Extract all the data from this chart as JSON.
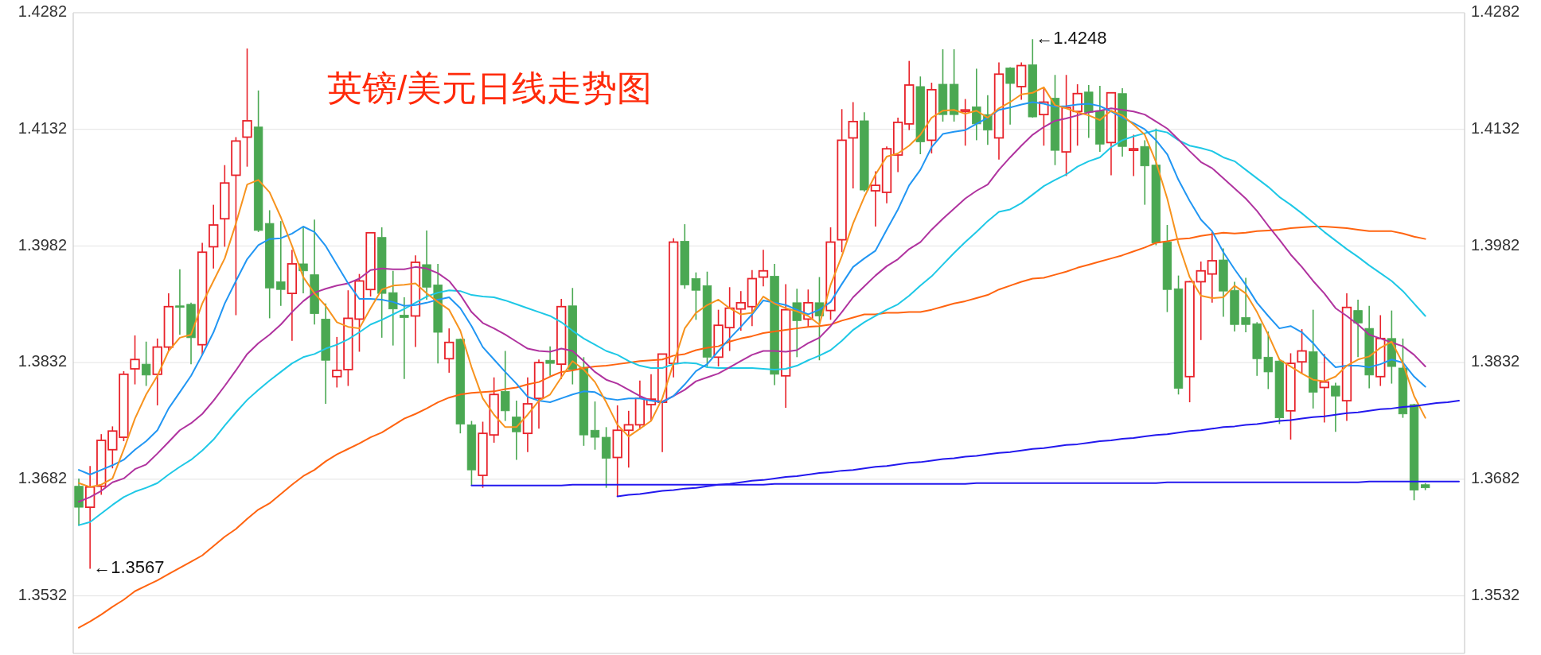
{
  "chart_data": {
    "type": "candlestick",
    "title": "英镑/美元日线走势图",
    "categories": [
      null,
      null,
      null,
      null,
      null,
      null,
      null,
      null,
      null,
      null,
      null,
      null,
      null,
      null,
      null,
      null,
      null,
      null,
      null,
      null,
      null,
      null,
      null,
      null,
      null,
      null,
      null,
      null,
      null,
      null,
      null,
      null,
      null,
      null,
      null,
      null,
      null,
      null,
      null,
      null,
      null,
      null,
      null,
      null,
      null,
      null,
      null,
      null,
      null,
      null,
      null,
      null,
      null,
      null,
      null,
      null,
      null,
      null,
      null,
      null,
      null,
      null,
      null,
      null,
      null,
      null,
      null,
      null,
      null,
      null,
      null,
      null,
      null,
      null,
      null,
      null,
      null,
      null,
      null,
      null,
      null,
      null,
      null,
      null,
      null,
      null,
      null,
      null,
      null,
      null,
      null,
      null,
      null,
      null,
      null,
      null,
      null,
      null,
      null,
      null,
      null,
      null,
      null,
      null,
      null,
      null,
      null,
      null,
      null,
      null,
      null,
      null,
      null,
      null,
      null,
      null,
      null,
      null,
      null,
      null,
      null,
      null,
      null,
      null
    ],
    "ohlc": [
      [
        1.3673,
        1.3683,
        1.3622,
        1.3646
      ],
      [
        1.3646,
        1.3699,
        1.3567,
        1.3672
      ],
      [
        1.3673,
        1.374,
        1.3662,
        1.3732
      ],
      [
        1.372,
        1.375,
        1.3696,
        1.3744
      ],
      [
        1.3736,
        1.3821,
        1.3731,
        1.3817
      ],
      [
        1.3824,
        1.3867,
        1.3804,
        1.3836
      ],
      [
        1.383,
        1.3859,
        1.3802,
        1.3816
      ],
      [
        1.3817,
        1.3863,
        1.3777,
        1.3852
      ],
      [
        1.3852,
        1.3921,
        1.3847,
        1.3904
      ],
      [
        1.3905,
        1.3952,
        1.3868,
        1.3903
      ],
      [
        1.3907,
        1.3909,
        1.383,
        1.3864
      ],
      [
        1.3855,
        1.3986,
        1.3842,
        1.3974
      ],
      [
        1.3981,
        1.4035,
        1.3953,
        1.4009
      ],
      [
        1.4017,
        1.4086,
        1.3981,
        1.4063
      ],
      [
        1.4073,
        1.4122,
        1.3893,
        1.4117
      ],
      [
        1.4122,
        1.4236,
        1.4084,
        1.4143
      ],
      [
        1.4135,
        1.4182,
        1.4,
        1.4002
      ],
      [
        1.4011,
        1.4028,
        1.3889,
        1.3928
      ],
      [
        1.3936,
        1.4014,
        1.3905,
        1.3926
      ],
      [
        1.3921,
        1.3977,
        1.386,
        1.3959
      ],
      [
        1.3959,
        1.4007,
        1.3921,
        1.395
      ],
      [
        1.3945,
        1.4016,
        1.3881,
        1.3895
      ],
      [
        1.3888,
        1.3908,
        1.3779,
        1.3835
      ],
      [
        1.3814,
        1.3865,
        1.38,
        1.3822
      ],
      [
        1.3823,
        1.3925,
        1.3802,
        1.3889
      ],
      [
        1.3888,
        1.3946,
        1.3846,
        1.3937
      ],
      [
        1.3926,
        1.3999,
        1.3917,
        1.3999
      ],
      [
        1.3993,
        1.4006,
        1.3864,
        1.3921
      ],
      [
        1.3922,
        1.395,
        1.3854,
        1.3901
      ],
      [
        1.3893,
        1.3916,
        1.3811,
        1.389
      ],
      [
        1.3892,
        1.397,
        1.3852,
        1.3961
      ],
      [
        1.3958,
        1.4002,
        1.3913,
        1.3929
      ],
      [
        1.3932,
        1.3959,
        1.3831,
        1.3871
      ],
      [
        1.3837,
        1.3876,
        1.3819,
        1.3858
      ],
      [
        1.3862,
        1.3863,
        1.3741,
        1.3753
      ],
      [
        1.3752,
        1.3757,
        1.3674,
        1.3694
      ],
      [
        1.3687,
        1.3756,
        1.3671,
        1.3741
      ],
      [
        1.3739,
        1.3813,
        1.3729,
        1.3791
      ],
      [
        1.3795,
        1.3847,
        1.3757,
        1.377
      ],
      [
        1.3762,
        1.3783,
        1.3707,
        1.3743
      ],
      [
        1.3741,
        1.3813,
        1.3717,
        1.3779
      ],
      [
        1.3786,
        1.3836,
        1.3747,
        1.3832
      ],
      [
        1.3835,
        1.3853,
        1.3815,
        1.3831
      ],
      [
        1.383,
        1.3914,
        1.3811,
        1.3904
      ],
      [
        1.3905,
        1.3928,
        1.3804,
        1.3823
      ],
      [
        1.3826,
        1.3839,
        1.3725,
        1.3739
      ],
      [
        1.3745,
        1.3782,
        1.372,
        1.3736
      ],
      [
        1.3736,
        1.3749,
        1.3671,
        1.3709
      ],
      [
        1.371,
        1.3777,
        1.366,
        1.3745
      ],
      [
        1.3745,
        1.377,
        1.3697,
        1.3752
      ],
      [
        1.3752,
        1.3809,
        1.3746,
        1.3786
      ],
      [
        1.3778,
        1.3817,
        1.3757,
        1.3785
      ],
      [
        1.3781,
        1.3843,
        1.3717,
        1.3843
      ],
      [
        1.3831,
        1.3992,
        1.3813,
        1.3987
      ],
      [
        1.3988,
        1.401,
        1.3927,
        1.3932
      ],
      [
        1.394,
        1.3948,
        1.3887,
        1.3925
      ],
      [
        1.3931,
        1.3949,
        1.3827,
        1.3839
      ],
      [
        1.3839,
        1.39,
        1.3827,
        1.388
      ],
      [
        1.3877,
        1.3929,
        1.3847,
        1.3902
      ],
      [
        1.3901,
        1.3924,
        1.3873,
        1.3909
      ],
      [
        1.3904,
        1.3951,
        1.3879,
        1.394
      ],
      [
        1.3942,
        1.3977,
        1.393,
        1.395
      ],
      [
        1.3943,
        1.3959,
        1.3803,
        1.3817
      ],
      [
        1.3815,
        1.3933,
        1.3774,
        1.39
      ],
      [
        1.3909,
        1.3927,
        1.3839,
        1.3886
      ],
      [
        1.3888,
        1.3926,
        1.3878,
        1.3909
      ],
      [
        1.3909,
        1.3942,
        1.3835,
        1.3892
      ],
      [
        1.3899,
        1.4006,
        1.3887,
        1.3987
      ],
      [
        1.399,
        1.4158,
        1.3974,
        1.4118
      ],
      [
        1.4121,
        1.4167,
        1.4056,
        1.4142
      ],
      [
        1.4143,
        1.4154,
        1.4052,
        1.4054
      ],
      [
        1.4053,
        1.4078,
        1.4007,
        1.406
      ],
      [
        1.4051,
        1.411,
        1.4037,
        1.4107
      ],
      [
        1.4099,
        1.4147,
        1.4077,
        1.4141
      ],
      [
        1.4139,
        1.422,
        1.4131,
        1.4189
      ],
      [
        1.4187,
        1.42,
        1.41,
        1.4116
      ],
      [
        1.4118,
        1.4192,
        1.4101,
        1.4183
      ],
      [
        1.419,
        1.4235,
        1.4142,
        1.4151
      ],
      [
        1.419,
        1.4235,
        1.4142,
        1.4151
      ],
      [
        1.4155,
        1.4171,
        1.4111,
        1.4157
      ],
      [
        1.4161,
        1.421,
        1.4118,
        1.4139
      ],
      [
        1.4151,
        1.4176,
        1.4112,
        1.4131
      ],
      [
        1.4121,
        1.4218,
        1.4093,
        1.4203
      ],
      [
        1.4211,
        1.4212,
        1.4138,
        1.4191
      ],
      [
        1.4187,
        1.4218,
        1.417,
        1.4214
      ],
      [
        1.4215,
        1.4248,
        1.4147,
        1.4148
      ],
      [
        1.4151,
        1.4185,
        1.4111,
        1.4167
      ],
      [
        1.4172,
        1.4202,
        1.4086,
        1.4105
      ],
      [
        1.4103,
        1.4202,
        1.4072,
        1.416
      ],
      [
        1.4155,
        1.419,
        1.4111,
        1.4178
      ],
      [
        1.418,
        1.4189,
        1.4121,
        1.4154
      ],
      [
        1.4156,
        1.4188,
        1.4103,
        1.4113
      ],
      [
        1.4115,
        1.4179,
        1.4073,
        1.4179
      ],
      [
        1.4178,
        1.4185,
        1.4097,
        1.411
      ],
      [
        1.4105,
        1.4125,
        1.4072,
        1.4107
      ],
      [
        1.411,
        1.4118,
        1.4035,
        1.4085
      ],
      [
        1.4086,
        1.4133,
        1.3983,
        1.3986
      ],
      [
        1.3987,
        1.4009,
        1.3897,
        1.3926
      ],
      [
        1.3927,
        1.3944,
        1.3791,
        1.3799
      ],
      [
        1.3814,
        1.3937,
        1.3781,
        1.3936
      ],
      [
        1.3936,
        1.3962,
        1.3861,
        1.395
      ],
      [
        1.3946,
        1.4,
        1.3909,
        1.3963
      ],
      [
        1.3964,
        1.3979,
        1.3891,
        1.3924
      ],
      [
        1.3925,
        1.3936,
        1.3872,
        1.3881
      ],
      [
        1.389,
        1.3941,
        1.3871,
        1.3881
      ],
      [
        1.3882,
        1.3884,
        1.3815,
        1.3837
      ],
      [
        1.3839,
        1.3872,
        1.3798,
        1.382
      ],
      [
        1.3834,
        1.3835,
        1.3753,
        1.3761
      ],
      [
        1.377,
        1.3844,
        1.3733,
        1.3831
      ],
      [
        1.3833,
        1.3875,
        1.3818,
        1.3847
      ],
      [
        1.3846,
        1.39,
        1.3773,
        1.3794
      ],
      [
        1.38,
        1.3843,
        1.3755,
        1.3807
      ],
      [
        1.3802,
        1.3806,
        1.3743,
        1.3789
      ],
      [
        1.3783,
        1.3921,
        1.3757,
        1.3903
      ],
      [
        1.3899,
        1.3913,
        1.3839,
        1.3883
      ],
      [
        1.3876,
        1.3905,
        1.3799,
        1.3816
      ],
      [
        1.3814,
        1.3893,
        1.3802,
        1.3863
      ],
      [
        1.3863,
        1.3899,
        1.3805,
        1.3827
      ],
      [
        1.3825,
        1.3863,
        1.3761,
        1.3766
      ],
      [
        1.3778,
        1.3779,
        1.3655,
        1.3668
      ],
      [
        1.3675,
        1.3677,
        1.3668,
        1.3671
      ],
      null,
      null,
      null
    ],
    "colors": [
      "#4aa852",
      "#e8222a",
      "#e8222a",
      "#e8222a",
      "#e8222a",
      "#e8222a",
      "#4aa852",
      "#e8222a",
      "#e8222a",
      "#4aa852",
      "#4aa852",
      "#e8222a",
      "#e8222a",
      "#e8222a",
      "#e8222a",
      "#e8222a",
      "#4aa852",
      "#4aa852",
      "#4aa852",
      "#e8222a",
      "#4aa852",
      "#4aa852",
      "#4aa852",
      "#e8222a",
      "#e8222a",
      "#e8222a",
      "#e8222a",
      "#4aa852",
      "#4aa852",
      "#4aa852",
      "#e8222a",
      "#4aa852",
      "#4aa852",
      "#e8222a",
      "#4aa852",
      "#4aa852",
      "#e8222a",
      "#e8222a",
      "#4aa852",
      "#4aa852",
      "#e8222a",
      "#e8222a",
      "#4aa852",
      "#e8222a",
      "#4aa852",
      "#4aa852",
      "#4aa852",
      "#4aa852",
      "#e8222a",
      "#e8222a",
      "#e8222a",
      "#e8222a",
      "#e8222a",
      "#e8222a",
      "#4aa852",
      "#4aa852",
      "#4aa852",
      "#e8222a",
      "#e8222a",
      "#e8222a",
      "#e8222a",
      "#e8222a",
      "#4aa852",
      "#e8222a",
      "#4aa852",
      "#e8222a",
      "#4aa852",
      "#e8222a",
      "#e8222a",
      "#e8222a",
      "#4aa852",
      "#e8222a",
      "#e8222a",
      "#e8222a",
      "#e8222a",
      "#4aa852",
      "#e8222a",
      "#4aa852",
      "#4aa852",
      "#e8222a",
      "#4aa852",
      "#4aa852",
      "#e8222a",
      "#4aa852",
      "#e8222a",
      "#4aa852",
      "#e8222a",
      "#4aa852",
      "#e8222a",
      "#e8222a",
      "#4aa852",
      "#4aa852",
      "#e8222a",
      "#4aa852",
      "#e8222a",
      "#4aa852",
      "#4aa852",
      "#4aa852",
      "#4aa852",
      "#e8222a",
      "#e8222a",
      "#e8222a",
      "#4aa852",
      "#4aa852",
      "#4aa852",
      "#4aa852",
      "#4aa852",
      "#4aa852",
      "#e8222a",
      "#e8222a",
      "#4aa852",
      "#e8222a",
      "#4aa852",
      "#e8222a",
      "#4aa852",
      "#4aa852",
      "#e8222a",
      "#4aa852",
      "#4aa852",
      "#4aa852",
      "#4aa852",
      null,
      null,
      null
    ],
    "series": [
      {
        "type": "line",
        "color": "#ff6410",
        "values": [
          1.3491,
          1.3499,
          1.3508,
          1.3518,
          1.3527,
          1.3538,
          1.3545,
          1.3552,
          1.356,
          1.3568,
          1.3576,
          1.3584,
          1.3596,
          1.3608,
          1.3618,
          1.3631,
          1.3643,
          1.3651,
          1.3663,
          1.3675,
          1.3686,
          1.3694,
          1.3705,
          1.3714,
          1.3721,
          1.3728,
          1.3736,
          1.3742,
          1.3751,
          1.376,
          1.3766,
          1.3773,
          1.3781,
          1.3787,
          1.3791,
          1.3793,
          1.3794,
          1.3795,
          1.3798,
          1.38,
          1.3804,
          1.3807,
          1.3814,
          1.382,
          1.3822,
          1.3825,
          1.3827,
          1.3828,
          1.383,
          1.3832,
          1.3834,
          1.3835,
          1.3836,
          1.3841,
          1.3843,
          1.3848,
          1.3851,
          1.3853,
          1.3859,
          1.3863,
          1.3866,
          1.387,
          1.3872,
          1.3874,
          1.3876,
          1.3878,
          1.3879,
          1.3881,
          1.3886,
          1.389,
          1.3894,
          1.3894,
          1.3896,
          1.3896,
          1.3897,
          1.3897,
          1.39,
          1.3904,
          1.3908,
          1.3911,
          1.3915,
          1.3919,
          1.3926,
          1.3931,
          1.3936,
          1.394,
          1.3941,
          1.3945,
          1.3949,
          1.3954,
          1.3958,
          1.3962,
          1.3966,
          1.397,
          1.3975,
          1.398,
          1.3986,
          1.3988,
          1.3991,
          1.3992,
          1.3995,
          1.3997,
          1.3999,
          1.3998,
          1.3999,
          1.4001,
          1.4002,
          1.4003,
          1.4005,
          1.4006,
          1.4007,
          1.4007,
          1.4006,
          1.4005,
          1.4003,
          1.4001,
          1.4001,
          1.4001,
          1.3998,
          1.3994,
          1.3991,
          null,
          null,
          null
        ]
      },
      {
        "type": "line",
        "color": "#1ec8e6",
        "values": [
          1.3623,
          1.3627,
          1.3638,
          1.3649,
          1.3659,
          1.3666,
          1.3671,
          1.3677,
          1.3688,
          1.3698,
          1.3707,
          1.3719,
          1.3733,
          1.3751,
          1.3768,
          1.3784,
          1.3797,
          1.3809,
          1.382,
          1.3831,
          1.3839,
          1.3843,
          1.385,
          1.3855,
          1.3862,
          1.3871,
          1.3881,
          1.3887,
          1.3894,
          1.3901,
          1.3909,
          1.3917,
          1.3922,
          1.3925,
          1.3924,
          1.3919,
          1.3917,
          1.3916,
          1.3912,
          1.3907,
          1.3902,
          1.3897,
          1.3892,
          1.3884,
          1.3873,
          1.3863,
          1.3855,
          1.3847,
          1.3842,
          1.3834,
          1.3828,
          1.3825,
          1.3825,
          1.383,
          1.3832,
          1.3831,
          1.3826,
          1.3825,
          1.3825,
          1.3825,
          1.3825,
          1.3824,
          1.3823,
          1.3824,
          1.3828,
          1.3835,
          1.3841,
          1.3848,
          1.386,
          1.3874,
          1.3884,
          1.3892,
          1.39,
          1.3907,
          1.3918,
          1.3931,
          1.3943,
          1.3958,
          1.3973,
          1.3987,
          1.4,
          1.4014,
          1.4026,
          1.4029,
          1.4037,
          1.4048,
          1.4059,
          1.4067,
          1.4074,
          1.4084,
          1.4091,
          1.4096,
          1.4109,
          1.4118,
          1.4123,
          1.4127,
          1.4131,
          1.4128,
          1.4118,
          1.4111,
          1.4108,
          1.4104,
          1.4096,
          1.4091,
          1.408,
          1.4069,
          1.4058,
          1.4045,
          1.4035,
          1.4024,
          1.4012,
          1.4,
          1.3989,
          1.3978,
          1.3968,
          1.3957,
          1.3947,
          1.3937,
          1.3924,
          1.3908,
          1.3892,
          null,
          null,
          null
        ]
      },
      {
        "type": "line",
        "color": "#b0339f",
        "values": [
          1.3653,
          1.3659,
          1.3667,
          1.3678,
          1.3683,
          1.3695,
          1.3701,
          1.3715,
          1.373,
          1.3745,
          1.3754,
          1.3766,
          1.3783,
          1.3802,
          1.3822,
          1.3843,
          1.3857,
          1.3868,
          1.3881,
          1.3897,
          1.3911,
          1.3922,
          1.3927,
          1.3931,
          1.3934,
          1.394,
          1.3951,
          1.3953,
          1.3952,
          1.3952,
          1.3955,
          1.3953,
          1.3947,
          1.3937,
          1.3919,
          1.3897,
          1.3883,
          1.3876,
          1.3868,
          1.3859,
          1.385,
          1.3847,
          1.3846,
          1.385,
          1.3847,
          1.3834,
          1.382,
          1.381,
          1.3805,
          1.3797,
          1.3789,
          1.3783,
          1.3782,
          1.3789,
          1.3797,
          1.3808,
          1.3813,
          1.3818,
          1.3826,
          1.3834,
          1.3842,
          1.3847,
          1.3847,
          1.3846,
          1.3848,
          1.3857,
          1.3864,
          1.3879,
          1.3897,
          1.3916,
          1.393,
          1.3944,
          1.3956,
          1.3965,
          1.3978,
          1.3987,
          1.4003,
          1.4017,
          1.403,
          1.4043,
          1.4053,
          1.4061,
          1.408,
          1.4096,
          1.4111,
          1.4125,
          1.4135,
          1.4143,
          1.4146,
          1.415,
          1.4154,
          1.4156,
          1.4159,
          1.4157,
          1.4155,
          1.4151,
          1.4142,
          1.4133,
          1.4119,
          1.4104,
          1.409,
          1.4082,
          1.4069,
          1.4056,
          1.4043,
          1.4027,
          1.4008,
          1.399,
          1.3971,
          1.3955,
          1.3937,
          1.3921,
          1.3902,
          1.3892,
          1.3881,
          1.3868,
          1.3863,
          1.3858,
          1.3853,
          1.3842,
          1.3827,
          null,
          null,
          null
        ]
      },
      {
        "type": "line",
        "color": "#2196f3",
        "values": [
          1.3694,
          1.3688,
          1.3694,
          1.37,
          1.3707,
          1.372,
          1.3731,
          1.3745,
          1.3773,
          1.3794,
          1.3815,
          1.3842,
          1.3871,
          1.3908,
          1.3937,
          1.3965,
          1.3983,
          1.3991,
          1.3992,
          1.3998,
          1.4007,
          1.4,
          1.3982,
          1.3958,
          1.3934,
          1.3914,
          1.3914,
          1.3913,
          1.391,
          1.3905,
          1.3906,
          1.3909,
          1.3913,
          1.3916,
          1.3902,
          1.3879,
          1.3852,
          1.3836,
          1.382,
          1.3805,
          1.3788,
          1.3783,
          1.3781,
          1.3786,
          1.3791,
          1.3795,
          1.3794,
          1.3786,
          1.3784,
          1.3786,
          1.3786,
          1.3783,
          1.3781,
          1.3789,
          1.3804,
          1.3821,
          1.383,
          1.3847,
          1.3863,
          1.3878,
          1.3894,
          1.3912,
          1.3909,
          1.3906,
          1.39,
          1.3894,
          1.39,
          1.391,
          1.3933,
          1.3955,
          1.3966,
          1.3976,
          1.4003,
          1.4029,
          1.406,
          1.408,
          1.4109,
          1.4126,
          1.4129,
          1.4131,
          1.4139,
          1.4147,
          1.4157,
          1.416,
          1.4164,
          1.4167,
          1.4165,
          1.4161,
          1.4162,
          1.4164,
          1.4165,
          1.4162,
          1.4155,
          1.4147,
          1.414,
          1.4132,
          1.4118,
          1.41,
          1.4067,
          1.404,
          1.4016,
          1.4001,
          1.3974,
          1.3952,
          1.3932,
          1.3909,
          1.3892,
          1.3876,
          1.3879,
          1.3871,
          1.3857,
          1.384,
          1.3826,
          1.3828,
          1.3828,
          1.3826,
          1.383,
          1.3836,
          1.3832,
          1.3814,
          1.3801,
          null,
          null,
          null
        ]
      },
      {
        "type": "line",
        "color": "#f7931e",
        "values": [
          1.3677,
          1.3672,
          1.3675,
          1.3683,
          1.372,
          1.376,
          1.3791,
          1.3815,
          1.3847,
          1.3864,
          1.3868,
          1.3908,
          1.3937,
          1.3966,
          1.4011,
          1.4061,
          1.4067,
          1.4051,
          1.4019,
          1.3982,
          1.3942,
          1.3921,
          1.3905,
          1.3884,
          1.3878,
          1.3876,
          1.3902,
          1.3926,
          1.3931,
          1.3932,
          1.3934,
          1.3921,
          1.391,
          1.39,
          1.3873,
          1.3826,
          1.3786,
          1.3765,
          1.3749,
          1.3749,
          1.3765,
          1.3783,
          1.3791,
          1.3813,
          1.3834,
          1.3823,
          1.3807,
          1.3781,
          1.3752,
          1.3737,
          1.3747,
          1.3757,
          1.3786,
          1.3831,
          1.3876,
          1.3896,
          1.3906,
          1.3913,
          1.3902,
          1.3894,
          1.3896,
          1.3917,
          1.3908,
          1.3902,
          1.3898,
          1.3892,
          1.3881,
          1.3932,
          1.3969,
          1.4011,
          1.4045,
          1.4074,
          1.4097,
          1.4101,
          1.4111,
          1.4125,
          1.4147,
          1.4156,
          1.4157,
          1.4152,
          1.4156,
          1.4147,
          1.4159,
          1.4167,
          1.4177,
          1.4179,
          1.4186,
          1.4163,
          1.4159,
          1.4154,
          1.415,
          1.4144,
          1.4156,
          1.415,
          1.4138,
          1.4125,
          1.409,
          1.4043,
          1.3985,
          1.3942,
          1.3918,
          1.3915,
          1.3916,
          1.3931,
          1.3921,
          1.3897,
          1.3868,
          1.3836,
          1.3827,
          1.3818,
          1.381,
          1.3808,
          1.3814,
          1.3828,
          1.3836,
          1.384,
          1.3851,
          1.3859,
          1.3831,
          1.3789,
          1.3761,
          null,
          null,
          null
        ]
      },
      {
        "type": "line",
        "color": "#2318ee",
        "values": [
          null,
          null,
          null,
          null,
          null,
          null,
          null,
          null,
          null,
          null,
          null,
          null,
          null,
          null,
          null,
          null,
          null,
          null,
          null,
          null,
          null,
          null,
          null,
          null,
          null,
          null,
          null,
          null,
          null,
          null,
          null,
          null,
          null,
          null,
          null,
          1.3674,
          1.3674,
          1.3674,
          1.3674,
          1.3674,
          1.3674,
          1.3674,
          1.3674,
          1.3674,
          1.3675,
          1.3675,
          1.3675,
          1.3675,
          1.3675,
          1.3675,
          1.3675,
          1.3675,
          1.3675,
          1.3675,
          1.3675,
          1.3675,
          1.3675,
          1.3675,
          1.3675,
          1.3675,
          1.3675,
          1.3675,
          1.3676,
          1.3676,
          1.3676,
          1.3676,
          1.3676,
          1.3676,
          1.3676,
          1.3676,
          1.3676,
          1.3676,
          1.3676,
          1.3676,
          1.3676,
          1.3676,
          1.3676,
          1.3676,
          1.3676,
          1.3676,
          1.3677,
          1.3677,
          1.3677,
          1.3677,
          1.3677,
          1.3677,
          1.3677,
          1.3677,
          1.3677,
          1.3677,
          1.3677,
          1.3677,
          1.3677,
          1.3677,
          1.3677,
          1.3677,
          1.3677,
          1.3678,
          1.3678,
          1.3678,
          1.3678,
          1.3678,
          1.3678,
          1.3678,
          1.3678,
          1.3678,
          1.3678,
          1.3678,
          1.3678,
          1.3678,
          1.3678,
          1.3678,
          1.3678,
          1.3678,
          1.3678,
          1.3679,
          1.3679,
          1.3679,
          1.3679,
          1.3679,
          1.3679,
          1.3679,
          1.3679,
          1.3679
        ]
      },
      {
        "type": "line",
        "color": "#2318ee",
        "values": [
          null,
          null,
          null,
          null,
          null,
          null,
          null,
          null,
          null,
          null,
          null,
          null,
          null,
          null,
          null,
          null,
          null,
          null,
          null,
          null,
          null,
          null,
          null,
          null,
          null,
          null,
          null,
          null,
          null,
          null,
          null,
          null,
          null,
          null,
          null,
          null,
          null,
          null,
          null,
          null,
          null,
          null,
          null,
          null,
          null,
          null,
          null,
          null,
          1.366,
          1.3662,
          1.3663,
          1.3665,
          1.3667,
          1.3668,
          1.367,
          1.3671,
          1.3673,
          1.3675,
          1.3676,
          1.3678,
          1.368,
          1.3681,
          1.3683,
          1.3685,
          1.3686,
          1.3688,
          1.369,
          1.3691,
          1.3693,
          1.3694,
          1.3696,
          1.3698,
          1.3699,
          1.3701,
          1.3703,
          1.3704,
          1.3706,
          1.3708,
          1.3709,
          1.3711,
          1.3712,
          1.3714,
          1.3716,
          1.3717,
          1.3719,
          1.3721,
          1.3722,
          1.3724,
          1.3726,
          1.3727,
          1.3729,
          1.3731,
          1.3732,
          1.3734,
          1.3735,
          1.3737,
          1.3739,
          1.374,
          1.3742,
          1.3744,
          1.3745,
          1.3747,
          1.3749,
          1.375,
          1.3752,
          1.3753,
          1.3755,
          1.3757,
          1.3758,
          1.376,
          1.3762,
          1.3763,
          1.3765,
          1.3767,
          1.3768,
          1.377,
          1.3772,
          1.3773,
          1.3775,
          1.3776,
          1.3778,
          1.378,
          1.3781,
          1.3783
        ]
      }
    ],
    "ylim": [
      1.3458,
      1.4282
    ],
    "yticks": [
      1.3532,
      1.3682,
      1.3832,
      1.3982,
      1.4132,
      1.4282
    ],
    "y2lim": [
      1.3458,
      1.4282
    ],
    "y2ticks": [
      1.3532,
      1.3682,
      1.3832,
      1.3982,
      1.4132,
      1.4282
    ],
    "grid": "y",
    "annotations": [
      "←1.3567",
      "←1.4248"
    ]
  }
}
